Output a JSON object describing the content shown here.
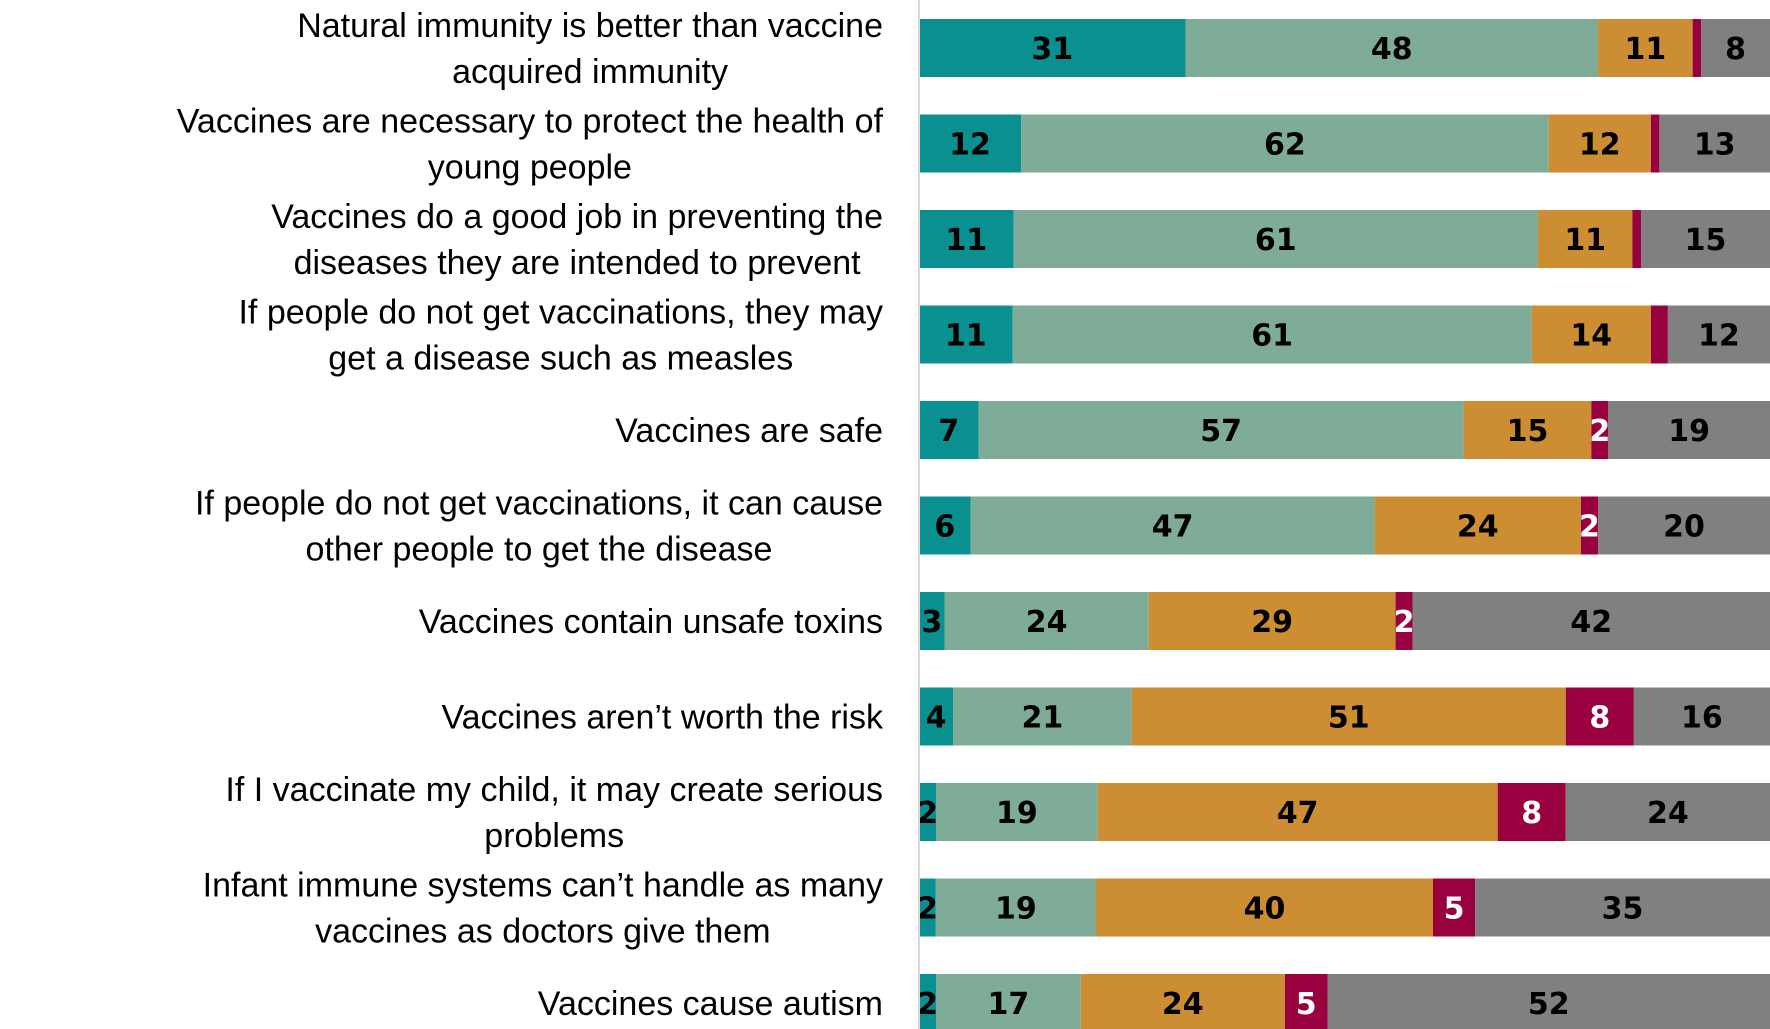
{
  "chart_data": {
    "type": "bar",
    "orientation": "horizontal",
    "stacked": true,
    "grid": false,
    "legend": "none",
    "categories": [
      "Natural immunity is better than vaccine acquired immunity",
      "Vaccines are necessary to protect the health of young people",
      "Vaccines do a good job in preventing the diseases they are intended to prevent",
      "If people do not get vaccinations, they may get a disease such as measles",
      "Vaccines are safe",
      "If people do not get vaccinations, it can cause other people to get the disease",
      "Vaccines contain unsafe toxins",
      "Vaccines aren’t worth the risk",
      "If I vaccinate my child, it may create serious problems",
      "Infant immune systems can’t handle as many vaccines as doctors give them",
      "Vaccines cause autism"
    ],
    "category_lines": [
      [
        "Natural immunity is better than vaccine",
        "acquired immunity"
      ],
      [
        "Vaccines are necessary to protect the health of",
        "young people"
      ],
      [
        "Vaccines do a good job in preventing the",
        "diseases they are intended to prevent"
      ],
      [
        "If people do not get vaccinations, they may",
        "get a disease such as measles"
      ],
      [
        "Vaccines are safe"
      ],
      [
        "If people do not get vaccinations, it can cause",
        "other people to get the disease"
      ],
      [
        "Vaccines contain unsafe toxins"
      ],
      [
        "Vaccines aren’t worth the risk"
      ],
      [
        "If I vaccinate my child, it may create serious",
        "problems"
      ],
      [
        "Infant immune systems can’t handle as many",
        "vaccines as doctors give them"
      ],
      [
        "Vaccines cause autism"
      ]
    ],
    "series": [
      {
        "color": "#0a9090",
        "label_color": "#000000",
        "values": [
          31,
          12,
          11,
          11,
          7,
          6,
          3,
          4,
          2,
          2,
          2
        ]
      },
      {
        "color": "#7fab99",
        "label_color": "#000000",
        "values": [
          48,
          62,
          61,
          61,
          57,
          47,
          24,
          21,
          19,
          19,
          17
        ]
      },
      {
        "color": "#cd8e33",
        "label_color": "#000000",
        "values": [
          11,
          12,
          11,
          14,
          15,
          24,
          29,
          51,
          47,
          40,
          24
        ]
      },
      {
        "color": "#990040",
        "label_color": "#ffffff",
        "values": [
          1,
          1,
          1,
          2,
          2,
          2,
          2,
          8,
          8,
          5,
          5
        ]
      },
      {
        "color": "#808080",
        "label_color": "#000000",
        "values": [
          8,
          13,
          15,
          12,
          19,
          20,
          42,
          16,
          24,
          35,
          52
        ]
      }
    ],
    "data_labels": [
      [
        "31",
        "48",
        "11",
        "",
        "8"
      ],
      [
        "12",
        "62",
        "12",
        "",
        "13"
      ],
      [
        "11",
        "61",
        "11",
        "",
        "15"
      ],
      [
        "11",
        "61",
        "14",
        "",
        "12"
      ],
      [
        "7",
        "57",
        "15",
        "2",
        "19"
      ],
      [
        "6",
        "47",
        "24",
        "2",
        "20"
      ],
      [
        "3",
        "24",
        "29",
        "2",
        "42"
      ],
      [
        "4",
        "21",
        "51",
        "8",
        "16"
      ],
      [
        "2",
        "19",
        "47",
        "8",
        "24"
      ],
      [
        "2",
        "19",
        "40",
        "5",
        "35"
      ],
      [
        "2",
        "17",
        "24",
        "5",
        "52"
      ]
    ]
  }
}
